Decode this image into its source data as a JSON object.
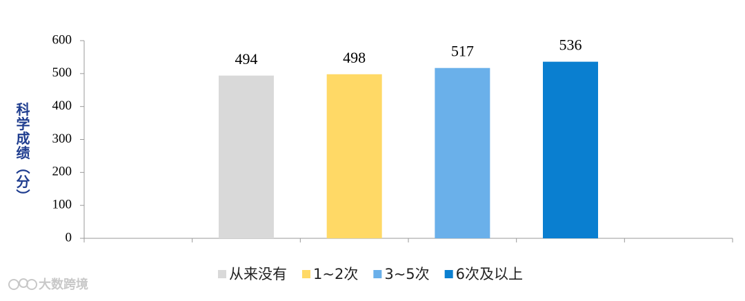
{
  "chart_data": {
    "type": "bar",
    "y_label": "科学成绩（分）",
    "categories": [
      null,
      "从来没有",
      "1~2次",
      "3~5次",
      "6次及以上",
      null
    ],
    "values": [
      null,
      494,
      498,
      517,
      536,
      null
    ],
    "colors": [
      null,
      "#d9d9d9",
      "#ffd966",
      "#6ab0ea",
      "#0a7fd0",
      null
    ],
    "ylim": [
      0,
      600
    ],
    "yticks": [
      0,
      100,
      200,
      300,
      400,
      500,
      600
    ],
    "grid": false,
    "legend": "bottom"
  },
  "watermark": "大数跨境"
}
